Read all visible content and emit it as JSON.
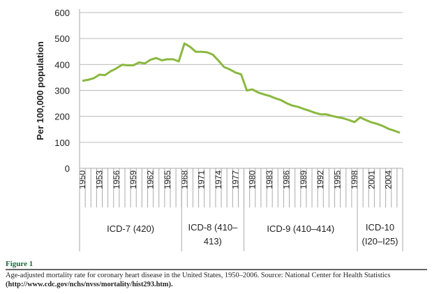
{
  "chart_data": {
    "type": "line",
    "ylabel": "Per 100,000 population",
    "xlabel": "",
    "ylim": [
      0,
      600
    ],
    "yticks": [
      0,
      100,
      200,
      300,
      400,
      500,
      600
    ],
    "grid": true,
    "line_color": "#8ab83f",
    "x": [
      1950,
      1951,
      1952,
      1953,
      1954,
      1955,
      1956,
      1957,
      1958,
      1959,
      1960,
      1961,
      1962,
      1963,
      1964,
      1965,
      1966,
      1967,
      1968,
      1969,
      1970,
      1971,
      1972,
      1973,
      1974,
      1975,
      1976,
      1977,
      1978,
      1979,
      1980,
      1981,
      1982,
      1983,
      1984,
      1985,
      1986,
      1987,
      1988,
      1989,
      1990,
      1991,
      1992,
      1993,
      1994,
      1995,
      1996,
      1997,
      1998,
      1999,
      2000,
      2001,
      2002,
      2003,
      2004,
      2005,
      2006
    ],
    "values": [
      337,
      341,
      347,
      361,
      359,
      374,
      385,
      399,
      397,
      397,
      408,
      404,
      418,
      425,
      416,
      420,
      420,
      412,
      481,
      468,
      449,
      449,
      447,
      438,
      415,
      390,
      381,
      369,
      362,
      300,
      304,
      292,
      285,
      279,
      270,
      263,
      251,
      242,
      237,
      229,
      222,
      214,
      208,
      208,
      202,
      197,
      193,
      186,
      178,
      196,
      186,
      177,
      171,
      163,
      152,
      145,
      137
    ],
    "xtick_labels": [
      "1950",
      "1953",
      "1956",
      "1959",
      "1962",
      "1965",
      "1968",
      "1971",
      "1974",
      "1977",
      "1980",
      "1983",
      "1986",
      "1989",
      "1992",
      "1995",
      "1998",
      "2001",
      "2004"
    ],
    "groups": [
      {
        "label1": "ICD-7 (420)",
        "label2": "",
        "start": 1950,
        "end": 1967
      },
      {
        "label1": "ICD-8 (410–",
        "label2": "413)",
        "start": 1968,
        "end": 1978
      },
      {
        "label1": "ICD-9 (410–414)",
        "label2": "",
        "start": 1979,
        "end": 1998
      },
      {
        "label1": "ICD-10",
        "label2": "(I20–I25)",
        "start": 1999,
        "end": 2006
      }
    ]
  },
  "caption": {
    "figure_label": "Figure 1",
    "text": "Age-adjusted mortality rate for coronary heart disease in the United States, 1950–2006. Source: National Center for Health Statistics",
    "link": "(http://www.cdc.gov/nchs/nvss/mortality/hist293.htm)."
  }
}
